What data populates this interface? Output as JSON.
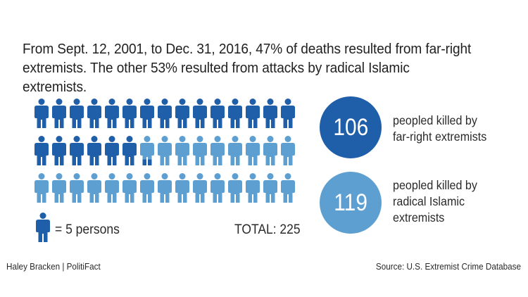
{
  "headline": "From Sept. 12, 2001, to Dec. 31, 2016, 47% of deaths resulted from far-right extremists. The other 53% resulted from attacks by radical Islamic extremists.",
  "chart_data": {
    "type": "pictogram",
    "unit_label": "= 5 persons",
    "persons_per_icon": 5,
    "total_label": "TOTAL: 225",
    "total": 225,
    "categories": [
      {
        "name": "far-right extremists",
        "value": 106,
        "description": [
          "peopled killed by",
          "far-right extremists"
        ],
        "color": "#1f5ea8"
      },
      {
        "name": "radical Islamic extremists",
        "value": 119,
        "description": [
          "peopled killed by",
          "radical Islamic",
          "extremists"
        ],
        "color": "#5e9fd2"
      }
    ],
    "percentages": {
      "far_right": 47,
      "radical_islamic": 53
    }
  },
  "colors": {
    "dark": "#1f5ea8",
    "light": "#5e9fd2"
  },
  "credit": "Haley Bracken | PolitiFact",
  "source": "Source: U.S. Extremist Crime Database"
}
